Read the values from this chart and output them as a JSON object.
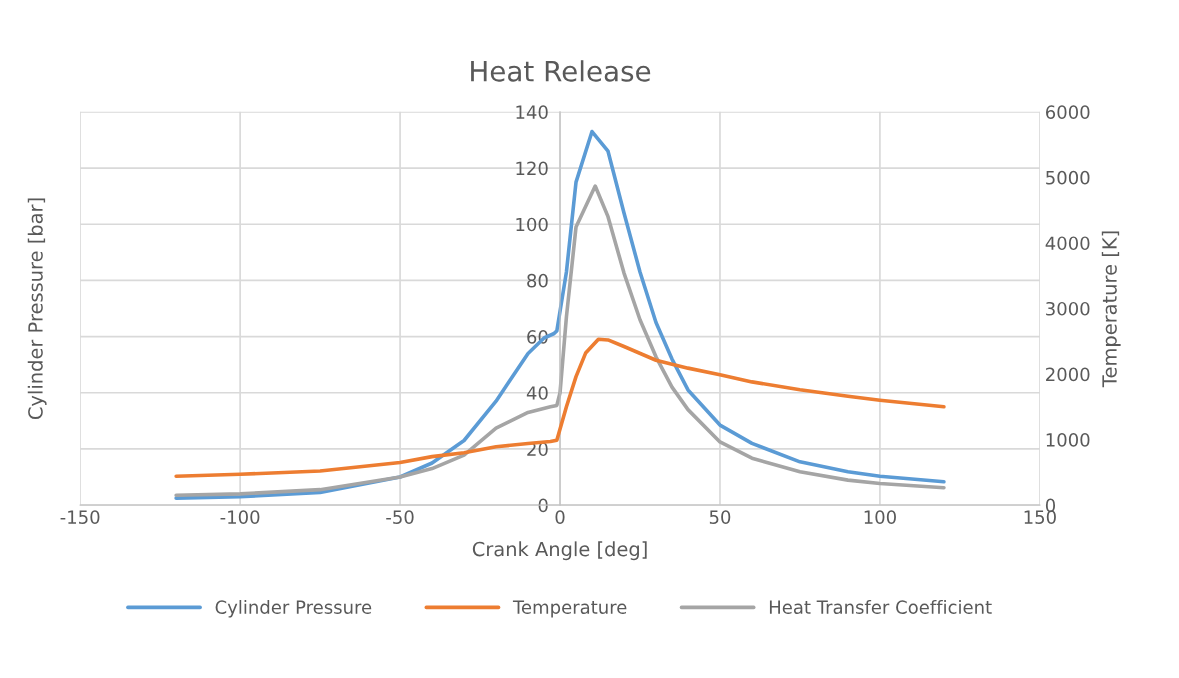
{
  "chart_data": {
    "type": "line",
    "title": "Heat Release",
    "xlabel": "Crank Angle [deg]",
    "ylabel": "Cylinder Pressure [bar]",
    "y2label": "Temperature [K]",
    "xlim": [
      -150,
      150
    ],
    "xticks": [
      -150,
      -100,
      -50,
      0,
      50,
      100,
      150
    ],
    "ylim": [
      0,
      140
    ],
    "yticks": [
      0,
      20,
      40,
      60,
      80,
      100,
      120,
      140
    ],
    "y2lim": [
      0,
      6000
    ],
    "y2ticks": [
      0,
      1000,
      2000,
      3000,
      4000,
      5000,
      6000
    ],
    "grid": true,
    "legend": "bottom",
    "marker": "none",
    "line_style": "solid",
    "series": [
      {
        "name": "Cylinder Pressure",
        "color": "#5b9bd5",
        "x": [
          -120,
          -100,
          -75,
          -50,
          -40,
          -30,
          -20,
          -10,
          -5,
          -2,
          -1,
          2,
          5,
          10,
          15,
          20,
          25,
          30,
          35,
          40,
          50,
          60,
          75,
          90,
          100,
          120
        ],
        "values": [
          2.5,
          3,
          4.5,
          10,
          15,
          23,
          37,
          54,
          59.5,
          61,
          62,
          83,
          115,
          133,
          126,
          104,
          83,
          65,
          52,
          41,
          28.5,
          22,
          15.4,
          11.9,
          10.3,
          8.3
        ]
      },
      {
        "name": "Temperature",
        "color": "#ed7d31",
        "axis": "y2",
        "x": [
          -120,
          -100,
          -75,
          -50,
          -40,
          -30,
          -20,
          -10,
          -3,
          -1,
          2,
          5,
          8,
          12,
          15,
          20,
          30,
          40,
          50,
          60,
          75,
          90,
          100,
          120
        ],
        "values": [
          440,
          470,
          520,
          650,
          740,
          800,
          890,
          940,
          970,
          990,
          1500,
          1960,
          2320,
          2530,
          2520,
          2420,
          2210,
          2090,
          1990,
          1880,
          1760,
          1660,
          1600,
          1500
        ]
      },
      {
        "name": "Heat Transfer Coefficient",
        "color": "#a5a5a5",
        "x": [
          -120,
          -100,
          -75,
          -50,
          -40,
          -30,
          -20,
          -10,
          -3,
          -1,
          0,
          2,
          5,
          11,
          15,
          20,
          25,
          30,
          35,
          40,
          50,
          60,
          75,
          90,
          100,
          120
        ],
        "values": [
          3.5,
          4,
          5.5,
          10,
          13,
          17.8,
          27.4,
          33,
          35,
          35.5,
          40,
          67,
          99,
          113.6,
          102.7,
          82.6,
          66,
          52.8,
          42,
          34,
          22.5,
          16.7,
          11.9,
          8.9,
          7.7,
          6.2
        ]
      }
    ]
  }
}
